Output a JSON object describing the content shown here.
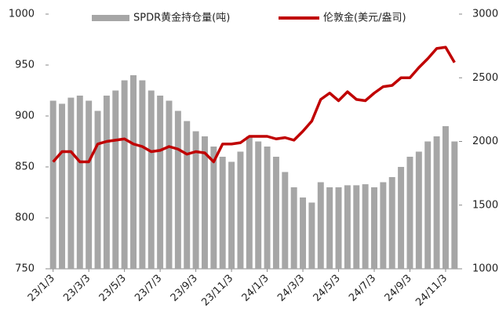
{
  "chart_data": {
    "type": "bar-line",
    "categories": [
      "23/1/3",
      null,
      null,
      null,
      "23/3/3",
      null,
      null,
      null,
      "23/5/3",
      null,
      null,
      null,
      "23/7/3",
      null,
      null,
      null,
      "23/9/3",
      null,
      null,
      null,
      "23/11/3",
      null,
      null,
      null,
      "24/1/3",
      null,
      null,
      null,
      "24/3/3",
      null,
      null,
      null,
      "24/5/3",
      null,
      null,
      null,
      "24/7/3",
      null,
      null,
      null,
      "24/9/3",
      null,
      null,
      null,
      "24/11/3",
      null
    ],
    "series": [
      {
        "name": "SPDR黄金持仓量(吨)",
        "color": "#a6a6a6",
        "type": "bar",
        "axis": "y",
        "values": [
          915,
          912,
          918,
          920,
          915,
          905,
          920,
          925,
          935,
          940,
          935,
          925,
          920,
          915,
          905,
          895,
          885,
          880,
          870,
          860,
          855,
          865,
          880,
          875,
          870,
          860,
          845,
          830,
          820,
          815,
          835,
          830,
          830,
          832,
          832,
          833,
          830,
          835,
          840,
          850,
          860,
          865,
          875,
          880,
          890,
          875
        ]
      },
      {
        "name": "伦敦金(美元/盎司)",
        "color": "#c00000",
        "type": "line",
        "axis": "y2",
        "values": [
          1840,
          1920,
          1920,
          1840,
          1840,
          1980,
          2000,
          2010,
          2020,
          1980,
          1960,
          1920,
          1930,
          1960,
          1940,
          1900,
          1920,
          1910,
          1840,
          1980,
          1980,
          1990,
          2040,
          2040,
          2040,
          2020,
          2030,
          2010,
          2080,
          2160,
          2330,
          2380,
          2320,
          2390,
          2330,
          2320,
          2380,
          2430,
          2440,
          2500,
          2500,
          2580,
          2650,
          2730,
          2740,
          2620
        ]
      }
    ],
    "ylim": [
      750,
      1000
    ],
    "yticks": [
      750,
      800,
      850,
      900,
      950,
      1000
    ],
    "y2lim": [
      1000,
      3000
    ],
    "y2ticks": [
      1000,
      1500,
      2000,
      2500,
      3000
    ],
    "legend": "top"
  }
}
